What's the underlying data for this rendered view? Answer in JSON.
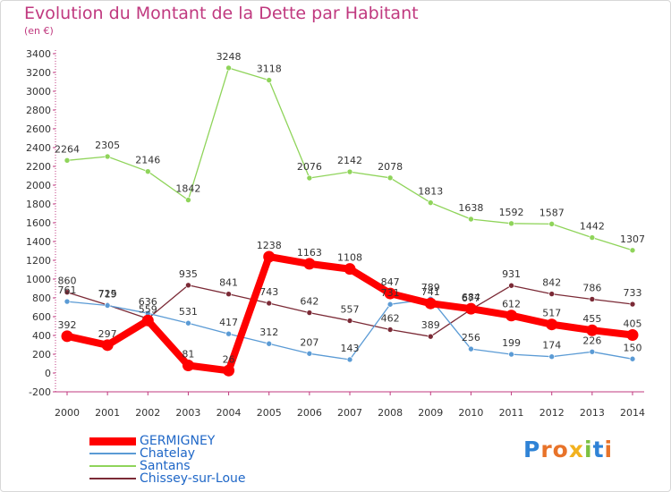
{
  "header": {
    "title": "Evolution du Montant de la Dette par Habitant",
    "subtitle": "(en €)"
  },
  "logo": {
    "text": "Proxiti",
    "letter_colors": [
      "#2f83d6",
      "#e8732a",
      "#e8732a",
      "#f2b21f",
      "#7cc142",
      "#2f83d6",
      "#e8732a"
    ]
  },
  "chart_data": {
    "type": "line",
    "title": "Evolution du Montant de la Dette par Habitant",
    "subtitle": "(en €)",
    "xlabel": "",
    "ylabel": "",
    "x": [
      "2000",
      "2001",
      "2002",
      "2003",
      "2004",
      "2005",
      "2006",
      "2007",
      "2008",
      "2009",
      "2010",
      "2011",
      "2012",
      "2013",
      "2014"
    ],
    "ylim": [
      -200,
      3400
    ],
    "yticks": [
      -200,
      0,
      200,
      400,
      600,
      800,
      1000,
      1200,
      1400,
      1600,
      1800,
      2000,
      2200,
      2400,
      2600,
      2800,
      3000,
      3200,
      3400
    ],
    "grid": false,
    "legend_position": "bottom-left",
    "series": [
      {
        "name": "GERMIGNEY",
        "color": "#ff0000",
        "values": [
          392,
          297,
          559,
          81,
          26,
          1238,
          1163,
          1108,
          847,
          741,
          684,
          612,
          517,
          455,
          405
        ],
        "labels": [
          "392",
          "297",
          "559",
          "81",
          "26",
          "1238",
          "1163",
          "1108",
          "847",
          "741",
          "684",
          "612",
          "517",
          "455",
          "405"
        ]
      },
      {
        "name": "Chatelay",
        "color": "#5b9bd5",
        "values": [
          761,
          719,
          636,
          531,
          417,
          312,
          207,
          143,
          731,
          789,
          256,
          199,
          174,
          226,
          150
        ],
        "labels": [
          "761",
          "719",
          "636",
          "531",
          "417",
          "312",
          "207",
          "143",
          "731",
          "789",
          "256",
          "199",
          "174",
          "226",
          "150"
        ]
      },
      {
        "name": "Santans",
        "color": "#8fd45a",
        "values": [
          2264,
          2305,
          2146,
          1842,
          3248,
          3118,
          2076,
          2142,
          2078,
          1813,
          1638,
          1592,
          1587,
          1442,
          1307
        ],
        "labels": [
          "2264",
          "2305",
          "2146",
          "1842",
          "3248",
          "3118",
          "2076",
          "2142",
          "2078",
          "1813",
          "1638",
          "1592",
          "1587",
          "1442",
          "1307"
        ]
      },
      {
        "name": "Chissey-sur-Loue",
        "color": "#7b2a36",
        "values": [
          860,
          725,
          578,
          935,
          841,
          743,
          642,
          557,
          462,
          389,
          677,
          931,
          842,
          786,
          733
        ],
        "labels": [
          "860",
          "725",
          "",
          "935",
          "841",
          "743",
          "642",
          "557",
          "462",
          "389",
          "677",
          "931",
          "842",
          "786",
          "733"
        ]
      }
    ]
  }
}
